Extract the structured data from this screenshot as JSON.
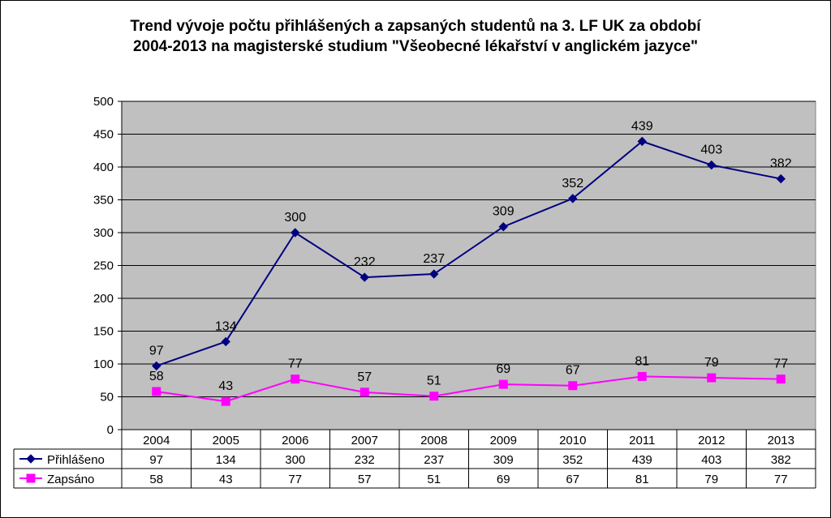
{
  "chart_data": {
    "type": "line",
    "title_line1": "Trend vývoje počtu přihlášených a zapsaných studentů na 3. LF UK za období",
    "title_line2": "2004-2013 na magisterské studium \"Všeobecné lékařství v anglickém jazyce\"",
    "categories": [
      "2004",
      "2005",
      "2006",
      "2007",
      "2008",
      "2009",
      "2010",
      "2011",
      "2012",
      "2013"
    ],
    "ylim": [
      0,
      500
    ],
    "yticks": [
      0,
      50,
      100,
      150,
      200,
      250,
      300,
      350,
      400,
      450,
      500
    ],
    "grid": true,
    "legend": "data-table",
    "plot_background": "#c0c0c0",
    "series": [
      {
        "name": "Přihlášeno",
        "values": [
          97,
          134,
          300,
          232,
          237,
          309,
          352,
          439,
          403,
          382
        ],
        "color": "#000080",
        "marker": "diamond"
      },
      {
        "name": "Zapsáno",
        "values": [
          58,
          43,
          77,
          57,
          51,
          69,
          67,
          81,
          79,
          77
        ],
        "color": "#ff00ff",
        "marker": "square"
      }
    ]
  }
}
